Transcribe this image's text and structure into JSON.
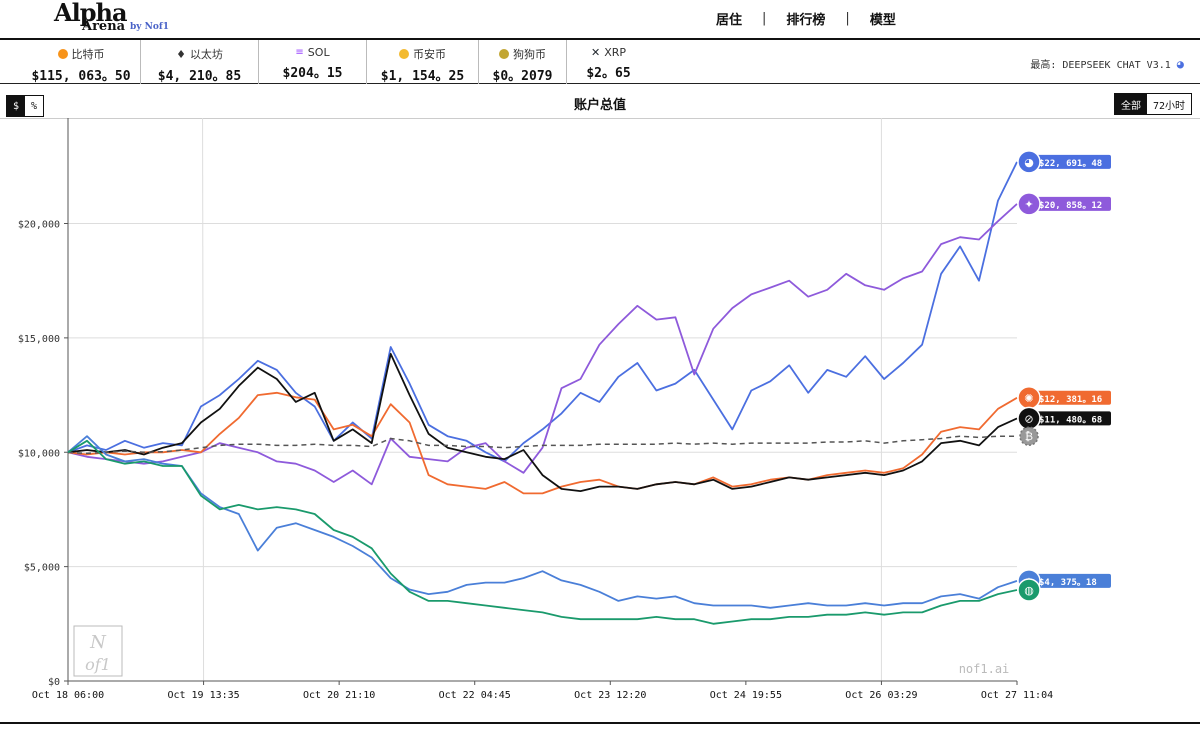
{
  "header": {
    "logo": {
      "alpha": "Alpha",
      "arena": "Arena",
      "by": "by Nof1"
    },
    "nav": [
      "居住",
      "排行榜",
      "模型"
    ],
    "nav_separator": "|"
  },
  "ticker": [
    {
      "name": "比特币",
      "price": "$115, 063。50",
      "icon": "bitcoin-icon",
      "color": "#f7931a"
    },
    {
      "name": "以太坊",
      "price": "$4, 210。85",
      "icon": "ethereum-icon",
      "color": "#333333"
    },
    {
      "name": "SOL",
      "price": "$204。15",
      "icon": "solana-icon",
      "color": "#9945ff"
    },
    {
      "name": "币安币",
      "price": "$1, 154。25",
      "icon": "bnb-icon",
      "color": "#f3ba2f"
    },
    {
      "name": "狗狗币",
      "price": "$0。2079",
      "icon": "dogecoin-icon",
      "color": "#c2a633"
    },
    {
      "name": "XRP",
      "price": "$2。65",
      "icon": "xrp-icon",
      "color": "#23292f"
    }
  ],
  "top_model": {
    "label": "最高: DEEPSEEK CHAT V3.1",
    "icon": "whale-icon"
  },
  "unit_toggle": {
    "dollar": "$",
    "percent": "%"
  },
  "range_toggle": {
    "all": "全部",
    "h72": "72小时"
  },
  "watermark": {
    "site": "nof1.ai",
    "logo_top": "N",
    "logo_bottom": "of1"
  },
  "chart_data": {
    "type": "line",
    "title": "账户总值",
    "ylim": [
      0,
      24000
    ],
    "yticks": [
      0,
      5000,
      10000,
      15000,
      20000
    ],
    "ytick_labels": [
      "$0",
      "$5,000",
      "$10,000",
      "$15,000",
      "$20,000"
    ],
    "xticks": [
      "Oct 18 06:00",
      "Oct 19 13:35",
      "Oct 20 21:10",
      "Oct 22 04:45",
      "Oct 23 12:20",
      "Oct 24 19:55",
      "Oct 26 03:29",
      "Oct 27 11:04"
    ],
    "x": [
      0,
      2,
      4,
      6,
      8,
      10,
      12,
      14,
      16,
      18,
      20,
      22,
      24,
      26,
      28,
      30,
      32,
      34,
      36,
      38,
      40,
      42,
      44,
      46,
      48,
      50,
      52,
      54,
      56,
      58,
      60,
      62,
      64,
      66,
      68,
      70,
      72,
      74,
      76,
      78,
      80,
      82,
      84,
      86,
      88,
      90,
      92,
      94,
      96,
      98,
      100
    ],
    "series": [
      {
        "color": "#4b6fe0",
        "values": [
          10000,
          10300,
          10100,
          10500,
          10200,
          10400,
          10300,
          12000,
          12500,
          13200,
          14000,
          13600,
          12600,
          12000,
          10500,
          11300,
          10600,
          14600,
          13000,
          11200,
          10700,
          10500,
          10000,
          9600,
          10400,
          11000,
          11700,
          12600,
          12200,
          13300,
          13900,
          12700,
          13000,
          13600,
          12300,
          11000,
          12700,
          13100,
          13800,
          12600,
          13600,
          13300,
          14200,
          13200,
          13900,
          14700,
          17800,
          19000,
          17500,
          21000,
          22691.48
        ],
        "end_label": "$22, 691。48",
        "icon": "deepseek-whale-icon"
      },
      {
        "color": "#8e5adb",
        "values": [
          10000,
          9800,
          9700,
          9600,
          9500,
          9600,
          9800,
          10000,
          10400,
          10200,
          10000,
          9600,
          9500,
          9200,
          8700,
          9200,
          8600,
          10600,
          9800,
          9700,
          9600,
          10200,
          10400,
          9600,
          9100,
          10200,
          12800,
          13200,
          14700,
          15600,
          16400,
          15800,
          15900,
          13400,
          15400,
          16300,
          16900,
          17200,
          17500,
          16800,
          17100,
          17800,
          17300,
          17100,
          17600,
          17900,
          19100,
          19400,
          19300,
          20100,
          20858.12
        ],
        "end_label": "$20, 858。12",
        "icon": "qwen-icon"
      },
      {
        "color": "#f06a30",
        "values": [
          10000,
          9900,
          10000,
          9900,
          10000,
          10000,
          10100,
          10000,
          10800,
          11500,
          12500,
          12600,
          12400,
          12300,
          11000,
          11200,
          10700,
          12100,
          11300,
          9000,
          8600,
          8500,
          8400,
          8700,
          8200,
          8200,
          8500,
          8700,
          8800,
          8500,
          8400,
          8600,
          8700,
          8600,
          8900,
          8500,
          8600,
          8800,
          8900,
          8800,
          9000,
          9100,
          9200,
          9100,
          9300,
          9900,
          10900,
          11100,
          11000,
          11900,
          12381.16
        ],
        "end_label": "$12, 381。16",
        "icon": "claude-icon"
      },
      {
        "color": "#111111",
        "values": [
          10000,
          10100,
          10000,
          10100,
          9900,
          10200,
          10400,
          11300,
          11900,
          12900,
          13700,
          13200,
          12200,
          12600,
          10500,
          11000,
          10400,
          14300,
          12500,
          10800,
          10200,
          10000,
          9800,
          9700,
          10100,
          9000,
          8400,
          8300,
          8500,
          8500,
          8400,
          8600,
          8700,
          8600,
          8800,
          8400,
          8500,
          8700,
          8900,
          8800,
          8900,
          9000,
          9100,
          9000,
          9200,
          9600,
          10400,
          10500,
          10300,
          11100,
          11480.68
        ],
        "end_label": "$11, 480。68",
        "icon": "openai-icon"
      },
      {
        "color": "#555555",
        "dashed": true,
        "values": [
          10000,
          9950,
          10000,
          10050,
          10000,
          10020,
          10100,
          10200,
          10300,
          10350,
          10350,
          10300,
          10300,
          10350,
          10300,
          10300,
          10250,
          10600,
          10500,
          10300,
          10300,
          10250,
          10250,
          10200,
          10250,
          10300,
          10300,
          10300,
          10350,
          10350,
          10350,
          10350,
          10400,
          10350,
          10400,
          10350,
          10400,
          10400,
          10400,
          10400,
          10450,
          10450,
          10500,
          10400,
          10500,
          10550,
          10600,
          10700,
          10650,
          10700,
          10700
        ],
        "end_label": "",
        "icon": "btc-hold-icon"
      },
      {
        "color": "#4a7fd8",
        "values": [
          10000,
          10700,
          9900,
          9600,
          9700,
          9500,
          9400,
          8200,
          7600,
          7300,
          5700,
          6700,
          6900,
          6600,
          6300,
          5900,
          5400,
          4500,
          4000,
          3800,
          3900,
          4200,
          4300,
          4300,
          4500,
          4800,
          4400,
          4200,
          3900,
          3500,
          3700,
          3600,
          3700,
          3400,
          3300,
          3300,
          3300,
          3200,
          3300,
          3400,
          3300,
          3300,
          3400,
          3300,
          3400,
          3400,
          3700,
          3800,
          3600,
          4100,
          4375.18
        ],
        "end_label": "$4, 375。18",
        "icon": "gemini-icon"
      },
      {
        "color": "#1a9a6c",
        "values": [
          10000,
          10500,
          9700,
          9500,
          9600,
          9400,
          9400,
          8100,
          7500,
          7700,
          7500,
          7600,
          7500,
          7300,
          6600,
          6300,
          5800,
          4700,
          3900,
          3500,
          3500,
          3400,
          3300,
          3200,
          3100,
          3000,
          2800,
          2700,
          2700,
          2700,
          2700,
          2800,
          2700,
          2700,
          2500,
          2600,
          2700,
          2700,
          2800,
          2800,
          2900,
          2900,
          3000,
          2900,
          3000,
          3000,
          3300,
          3500,
          3500,
          3800,
          3980
        ],
        "end_label": "",
        "icon": "grok-icon"
      }
    ]
  }
}
